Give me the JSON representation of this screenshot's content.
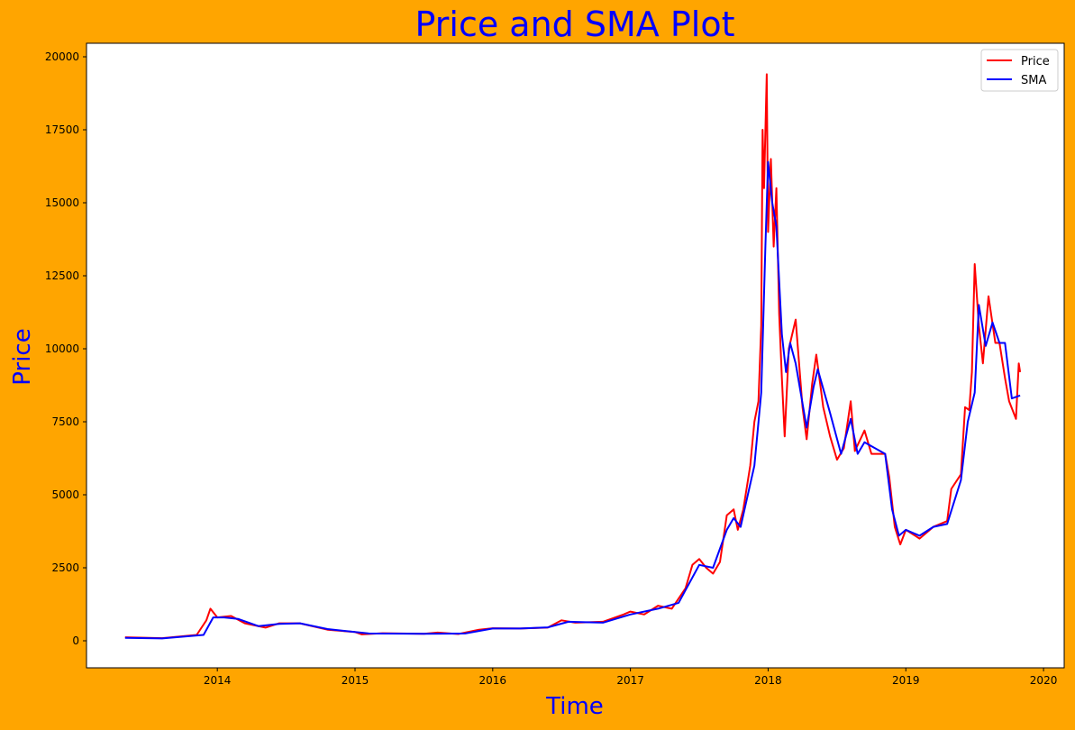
{
  "chart_data": {
    "type": "line",
    "title": "Price and SMA Plot",
    "xlabel": "Time",
    "ylabel": "Price",
    "xlim": [
      2013.05,
      2020.15
    ],
    "ylim": [
      -926,
      20463
    ],
    "xticks": [
      2014,
      2015,
      2016,
      2017,
      2018,
      2019,
      2020
    ],
    "xtick_labels": [
      "2014",
      "2015",
      "2016",
      "2017",
      "2018",
      "2019",
      "2020"
    ],
    "yticks": [
      0,
      2500,
      5000,
      7500,
      10000,
      12500,
      15000,
      17500,
      20000
    ],
    "ytick_labels": [
      "0",
      "2500",
      "5000",
      "7500",
      "10000",
      "12500",
      "15000",
      "17500",
      "20000"
    ],
    "grid": false,
    "legend_position": "top-right",
    "colors": {
      "background": "#FFA500",
      "title": "#0000FF",
      "Price": "#FF0000",
      "SMA": "#0000FF"
    },
    "series": [
      {
        "name": "Price",
        "x": [
          2013.33,
          2013.6,
          2013.85,
          2013.92,
          2013.95,
          2014.0,
          2014.1,
          2014.2,
          2014.35,
          2014.45,
          2014.6,
          2014.8,
          2015.0,
          2015.05,
          2015.2,
          2015.5,
          2015.6,
          2015.75,
          2015.9,
          2016.0,
          2016.2,
          2016.4,
          2016.5,
          2016.6,
          2016.8,
          2016.95,
          2017.0,
          2017.1,
          2017.2,
          2017.3,
          2017.4,
          2017.45,
          2017.5,
          2017.55,
          2017.6,
          2017.65,
          2017.7,
          2017.75,
          2017.78,
          2017.82,
          2017.87,
          2017.9,
          2017.93,
          2017.95,
          2017.96,
          2017.97,
          2017.99,
          2018.0,
          2018.02,
          2018.04,
          2018.06,
          2018.08,
          2018.1,
          2018.12,
          2018.15,
          2018.2,
          2018.25,
          2018.28,
          2018.32,
          2018.35,
          2018.4,
          2018.45,
          2018.5,
          2018.55,
          2018.6,
          2018.63,
          2018.7,
          2018.75,
          2018.85,
          2018.88,
          2018.92,
          2018.96,
          2019.0,
          2019.1,
          2019.2,
          2019.3,
          2019.33,
          2019.4,
          2019.43,
          2019.46,
          2019.48,
          2019.5,
          2019.53,
          2019.56,
          2019.6,
          2019.65,
          2019.68,
          2019.72,
          2019.75,
          2019.8,
          2019.82,
          2019.83
        ],
        "y": [
          120,
          90,
          200,
          700,
          1100,
          800,
          850,
          600,
          450,
          600,
          600,
          380,
          300,
          220,
          260,
          240,
          280,
          230,
          380,
          430,
          420,
          450,
          700,
          620,
          650,
          900,
          1000,
          900,
          1200,
          1100,
          1800,
          2600,
          2800,
          2500,
          2300,
          2700,
          4300,
          4500,
          3800,
          4500,
          6000,
          7500,
          8200,
          10800,
          17500,
          15500,
          19400,
          14000,
          16500,
          13500,
          15500,
          11200,
          9000,
          7000,
          10000,
          11000,
          8000,
          6900,
          8800,
          9800,
          8000,
          7000,
          6200,
          6600,
          8200,
          6500,
          7200,
          6400,
          6400,
          5600,
          3900,
          3300,
          3800,
          3500,
          3900,
          4100,
          5200,
          5700,
          8000,
          7900,
          9200,
          12900,
          10800,
          9500,
          11800,
          10200,
          10200,
          9000,
          8200,
          7600,
          9500,
          9200
        ]
      },
      {
        "name": "SMA",
        "x": [
          2013.33,
          2013.6,
          2013.9,
          2013.97,
          2014.05,
          2014.15,
          2014.3,
          2014.45,
          2014.6,
          2014.8,
          2015.1,
          2015.5,
          2015.8,
          2016.0,
          2016.2,
          2016.4,
          2016.55,
          2016.8,
          2017.0,
          2017.2,
          2017.35,
          2017.5,
          2017.6,
          2017.7,
          2017.75,
          2017.8,
          2017.9,
          2017.95,
          2017.98,
          2018.0,
          2018.03,
          2018.06,
          2018.1,
          2018.13,
          2018.16,
          2018.2,
          2018.28,
          2018.33,
          2018.36,
          2018.45,
          2018.53,
          2018.6,
          2018.65,
          2018.7,
          2018.85,
          2018.9,
          2018.95,
          2019.0,
          2019.1,
          2019.2,
          2019.3,
          2019.4,
          2019.45,
          2019.5,
          2019.53,
          2019.58,
          2019.63,
          2019.68,
          2019.72,
          2019.77,
          2019.83
        ],
        "y": [
          100,
          80,
          200,
          800,
          800,
          750,
          500,
          580,
          600,
          400,
          250,
          240,
          250,
          420,
          420,
          460,
          650,
          620,
          900,
          1100,
          1300,
          2600,
          2500,
          3800,
          4200,
          3900,
          6000,
          8500,
          13500,
          16400,
          15000,
          14200,
          10500,
          9200,
          10200,
          9500,
          7300,
          8700,
          9300,
          7800,
          6400,
          7600,
          6400,
          6800,
          6400,
          4500,
          3600,
          3800,
          3600,
          3900,
          4000,
          5500,
          7500,
          8500,
          11500,
          10100,
          10900,
          10200,
          10200,
          8300,
          8400
        ]
      }
    ]
  }
}
